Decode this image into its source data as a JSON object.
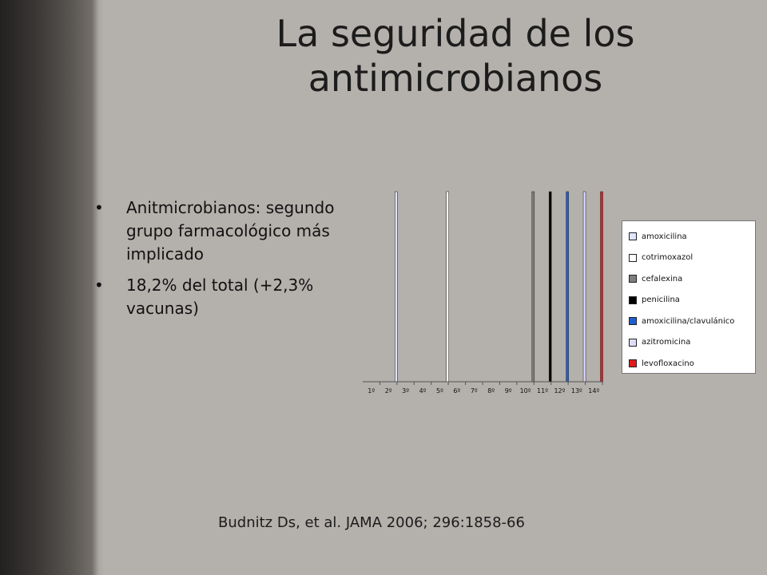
{
  "slide": {
    "title_line1": "La seguridad de los",
    "title_line2": "antimicrobianos",
    "bullets": [
      "Anitmicrobianos: segundo grupo farmacológico más implicado",
      "18,2% del total (+2,3% vacunas)"
    ],
    "citation": "Budnitz Ds, et al. JAMA 2006; 296:1858-66"
  },
  "chart_data": {
    "type": "bar",
    "categories": [
      "1º",
      "2º",
      "3º",
      "4º",
      "5º",
      "6º",
      "7º",
      "8º",
      "9º",
      "10º",
      "11º",
      "12º",
      "13º",
      "14º"
    ],
    "series": [
      {
        "name": "amoxicilina",
        "color": "#dfe6ff",
        "values": [
          null,
          1,
          null,
          null,
          null,
          null,
          null,
          null,
          null,
          null,
          null,
          null,
          null,
          null
        ]
      },
      {
        "name": "cotrimoxazol",
        "color": "#ffffff",
        "values": [
          null,
          null,
          null,
          null,
          1,
          null,
          null,
          null,
          null,
          null,
          null,
          null,
          null,
          null
        ]
      },
      {
        "name": "cefalexina",
        "color": "#7f7f7f",
        "values": [
          null,
          null,
          null,
          null,
          null,
          null,
          null,
          null,
          null,
          1,
          null,
          null,
          null,
          null
        ]
      },
      {
        "name": "penicilina",
        "color": "#000000",
        "values": [
          null,
          null,
          null,
          null,
          null,
          null,
          null,
          null,
          null,
          null,
          1,
          null,
          null,
          null
        ]
      },
      {
        "name": "amoxicilina/clavulánico",
        "color": "#1f5fd0",
        "values": [
          null,
          null,
          null,
          null,
          null,
          null,
          null,
          null,
          null,
          null,
          null,
          1,
          null,
          null
        ]
      },
      {
        "name": "azitromicina",
        "color": "#dcdcff",
        "values": [
          null,
          null,
          null,
          null,
          null,
          null,
          null,
          null,
          null,
          null,
          null,
          null,
          1,
          null
        ]
      },
      {
        "name": "levofloxacino",
        "color": "#e41a1a",
        "values": [
          null,
          null,
          null,
          null,
          null,
          null,
          null,
          null,
          null,
          null,
          null,
          null,
          null,
          1
        ]
      }
    ],
    "ylim": [
      0,
      1
    ],
    "legend_position": "right",
    "grid": false
  }
}
